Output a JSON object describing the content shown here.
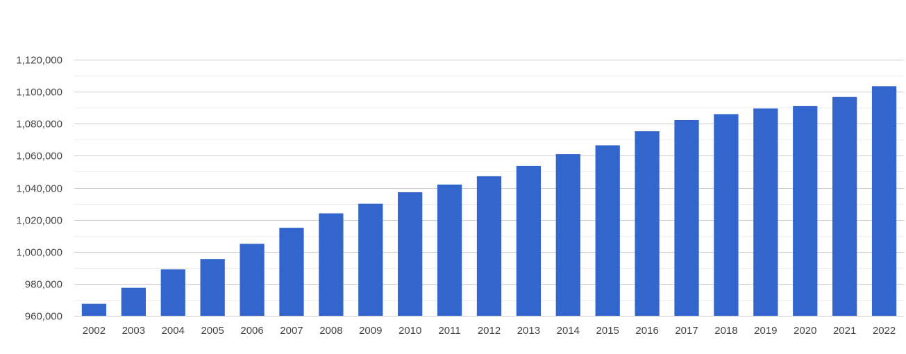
{
  "chart_data": {
    "type": "bar",
    "title": "",
    "xlabel": "",
    "ylabel": "",
    "categories": [
      "2002",
      "2003",
      "2004",
      "2005",
      "2006",
      "2007",
      "2008",
      "2009",
      "2010",
      "2011",
      "2012",
      "2013",
      "2014",
      "2015",
      "2016",
      "2017",
      "2018",
      "2019",
      "2020",
      "2021",
      "2022"
    ],
    "values": [
      967500,
      977500,
      989000,
      995500,
      1005000,
      1015000,
      1024000,
      1030000,
      1037200,
      1042000,
      1047200,
      1053700,
      1061000,
      1066500,
      1075300,
      1082300,
      1086000,
      1089500,
      1091000,
      1096700,
      1103400
    ],
    "ylim": [
      960000,
      1120000
    ],
    "yticks": [
      960000,
      980000,
      1000000,
      1020000,
      1040000,
      1060000,
      1080000,
      1100000,
      1120000
    ],
    "ytick_labels": [
      "960,000",
      "980,000",
      "1,000,000",
      "1,020,000",
      "1,040,000",
      "1,060,000",
      "1,080,000",
      "1,100,000",
      "1,120,000"
    ],
    "minor_grid": true,
    "grid": true,
    "legend": "none",
    "bar_color": "#3366cc",
    "grid_color": "#cccccc",
    "minor_grid_color": "#ebebeb",
    "label_color": "#444444"
  }
}
